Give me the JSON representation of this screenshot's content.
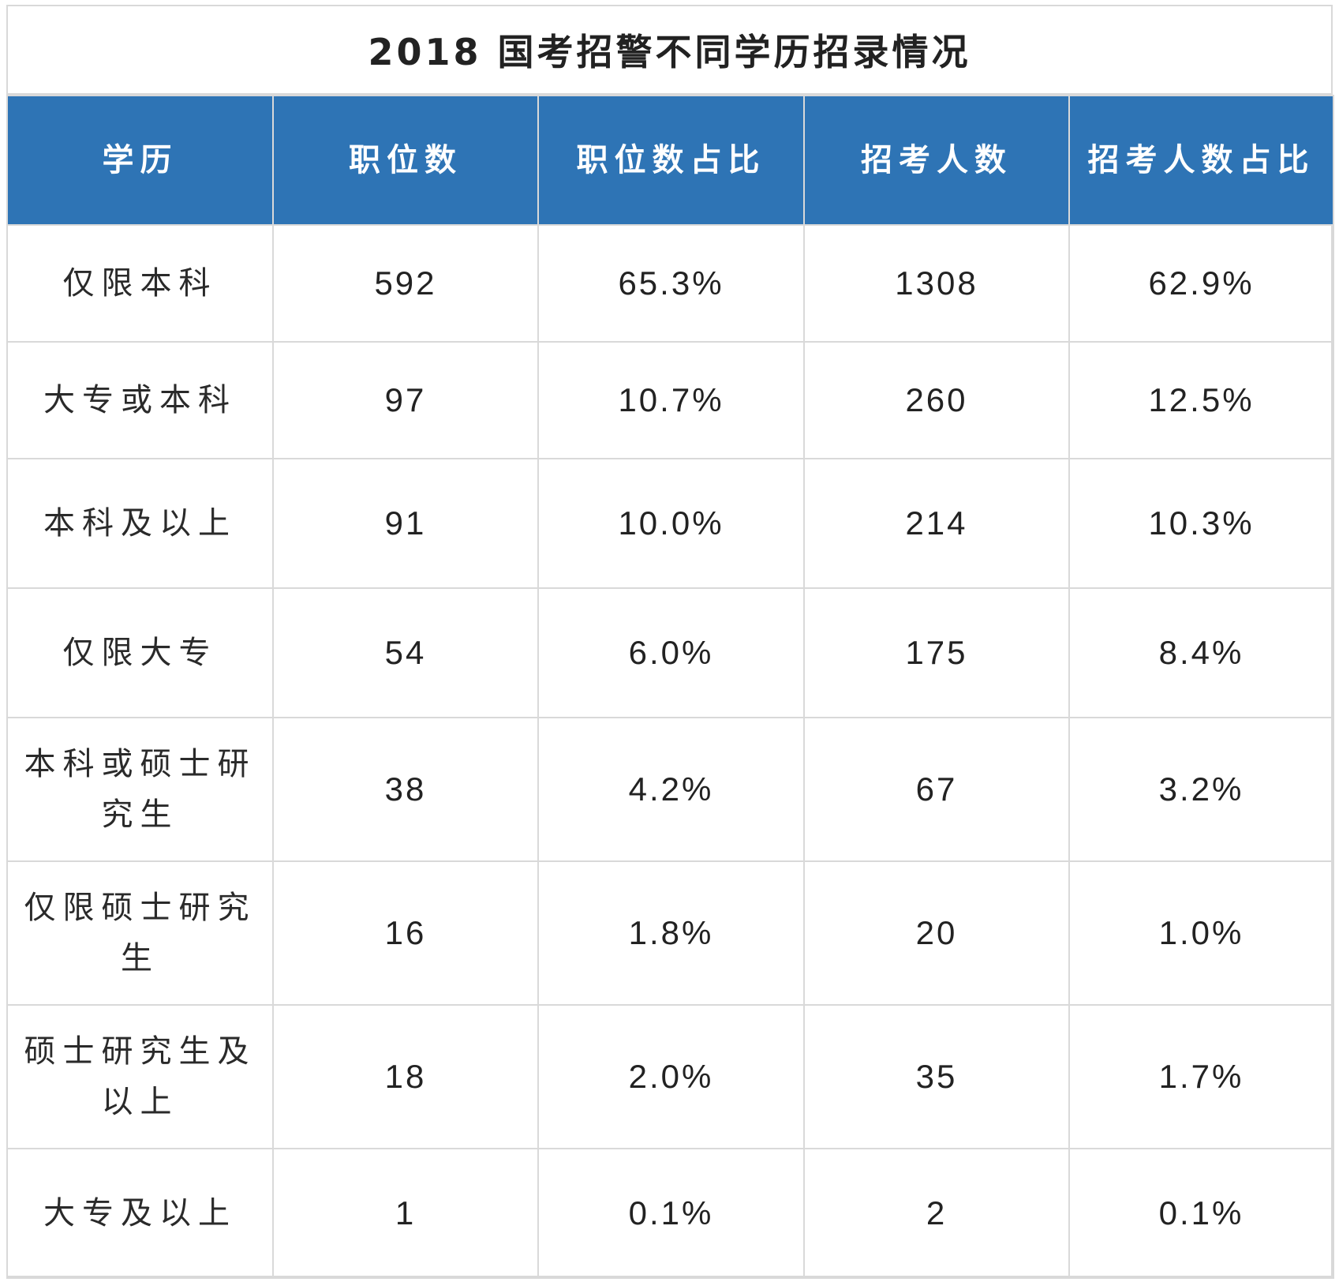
{
  "title": "2018 国考招警不同学历招录情况",
  "headers": [
    "学历",
    "职位数",
    "职位数占比",
    "招考人数",
    "招考人数占比"
  ],
  "rows": [
    {
      "education": "仅限本科",
      "positions": "592",
      "positions_pct": "65.3%",
      "applicants": "1308",
      "applicants_pct": "62.9%"
    },
    {
      "education": "大专或本科",
      "positions": "97",
      "positions_pct": "10.7%",
      "applicants": "260",
      "applicants_pct": "12.5%"
    },
    {
      "education": "本科及以上",
      "positions": "91",
      "positions_pct": "10.0%",
      "applicants": "214",
      "applicants_pct": "10.3%"
    },
    {
      "education": "仅限大专",
      "positions": "54",
      "positions_pct": "6.0%",
      "applicants": "175",
      "applicants_pct": "8.4%"
    },
    {
      "education": "本科或硕士研究生",
      "positions": "38",
      "positions_pct": "4.2%",
      "applicants": "67",
      "applicants_pct": "3.2%"
    },
    {
      "education": "仅限硕士研究生",
      "positions": "16",
      "positions_pct": "1.8%",
      "applicants": "20",
      "applicants_pct": "1.0%"
    },
    {
      "education": "硕士研究生及以上",
      "positions": "18",
      "positions_pct": "2.0%",
      "applicants": "35",
      "applicants_pct": "1.7%"
    },
    {
      "education": "大专及以上",
      "positions": "1",
      "positions_pct": "0.1%",
      "applicants": "2",
      "applicants_pct": "0.1%"
    }
  ],
  "colors": {
    "header_bg": "#2e74b5",
    "header_text": "#ffffff",
    "border": "#d9d9d9",
    "body_text": "#222222"
  }
}
